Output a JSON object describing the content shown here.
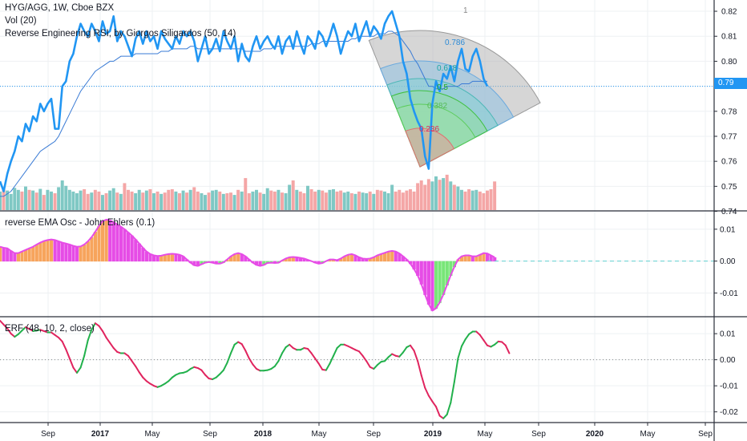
{
  "legend": {
    "main_title": "HYG/AGG, 1W, Cboe BZX",
    "vol": "Vol (20)",
    "rsi": "Reverse Engineering RSI, by Giorgos Siligardos (50, 14)",
    "osc": "reverse EMA Osc - John Ehlers (0.1)",
    "erf": "ERF (48, 10, 2, close)"
  },
  "price_tag": "0.79",
  "price_axis": [
    "0.82",
    "0.81",
    "0.80",
    "0.79",
    "0.78",
    "0.77",
    "0.76",
    "0.75",
    "0.74"
  ],
  "osc_axis": [
    "0.01",
    "0.00",
    "-0.01"
  ],
  "erf_axis": [
    "0.01",
    "0.00",
    "-0.01",
    "-0.02"
  ],
  "time_axis": [
    "Sep",
    "2017",
    "May",
    "Sep",
    "2018",
    "May",
    "Sep",
    "2019",
    "May",
    "Sep",
    "2020",
    "May",
    "Sep"
  ],
  "fib_labels": [
    "1",
    "0.786",
    "0.618",
    "0.5",
    "0.382",
    "0.236"
  ],
  "colors": {
    "price_line": "#2196f3",
    "ma_line": "#3a7bd5",
    "vol_up": "#7fc8c4",
    "vol_down": "#f4a6a6",
    "osc_orange": "#f7a45c",
    "osc_magenta": "#e64ce6",
    "osc_green": "#78e678",
    "erf_green": "#22b14c",
    "erf_red": "#e0245e",
    "zero_dashed": "#62d2d2"
  },
  "chart_data": [
    {
      "type": "line",
      "title": "HYG/AGG, 1W, Cboe BZX",
      "x_range": [
        "2016-06",
        "2020-10"
      ],
      "ylim": [
        0.74,
        0.825
      ],
      "series": [
        {
          "values": [
            0.752,
            0.748,
            0.755,
            0.76,
            0.764,
            0.77,
            0.768,
            0.775,
            0.772,
            0.778,
            0.776,
            0.783,
            0.78,
            0.783,
            0.785,
            0.773,
            0.773,
            0.79,
            0.792,
            0.8,
            0.803,
            0.81,
            0.815,
            0.812,
            0.81,
            0.815,
            0.812,
            0.808,
            0.816,
            0.811,
            0.812,
            0.818,
            0.808,
            0.812,
            0.81,
            0.806,
            0.802,
            0.809,
            0.812,
            0.807,
            0.812,
            0.808,
            0.81,
            0.805,
            0.812,
            0.809,
            0.807,
            0.805,
            0.81,
            0.807,
            0.812,
            0.81,
            0.812,
            0.808,
            0.8,
            0.805,
            0.81,
            0.803,
            0.805,
            0.809,
            0.804,
            0.812,
            0.808,
            0.805,
            0.81,
            0.8,
            0.807,
            0.802,
            0.8,
            0.806,
            0.81,
            0.805,
            0.808,
            0.81,
            0.807,
            0.805,
            0.81,
            0.803,
            0.808,
            0.81,
            0.805,
            0.812,
            0.807,
            0.803,
            0.81,
            0.808,
            0.805,
            0.812,
            0.81,
            0.806,
            0.81,
            0.815,
            0.81,
            0.803,
            0.808,
            0.812,
            0.81,
            0.815,
            0.808,
            0.812,
            0.816,
            0.81,
            0.814,
            0.812,
            0.809,
            0.815,
            0.818,
            0.82,
            0.815,
            0.81,
            0.8,
            0.795,
            0.785,
            0.78,
            0.776,
            0.773,
            0.762,
            0.757,
            0.783,
            0.792,
            0.788,
            0.795,
            0.793,
            0.798,
            0.792,
            0.8,
            0.805,
            0.797,
            0.796,
            0.802,
            0.805,
            0.8,
            0.793,
            0.79
          ]
        },
        {
          "values": [
            0.746,
            0.746,
            0.747,
            0.748,
            0.75,
            0.752,
            0.754,
            0.756,
            0.758,
            0.76,
            0.762,
            0.764,
            0.765,
            0.766,
            0.767,
            0.768,
            0.77,
            0.773,
            0.776,
            0.779,
            0.782,
            0.785,
            0.788,
            0.79,
            0.792,
            0.794,
            0.796,
            0.797,
            0.798,
            0.799,
            0.8,
            0.8,
            0.801,
            0.802,
            0.802,
            0.802,
            0.802,
            0.803,
            0.803,
            0.803,
            0.803,
            0.803,
            0.803,
            0.803,
            0.804,
            0.804,
            0.804,
            0.805,
            0.805,
            0.805,
            0.805,
            0.805,
            0.806,
            0.806,
            0.805,
            0.805,
            0.805,
            0.805,
            0.805,
            0.805,
            0.805,
            0.805,
            0.805,
            0.805,
            0.805,
            0.805,
            0.805,
            0.804,
            0.804,
            0.804,
            0.804,
            0.804,
            0.805,
            0.805,
            0.805,
            0.806,
            0.806,
            0.806,
            0.806,
            0.806,
            0.806,
            0.806,
            0.806,
            0.806,
            0.806,
            0.807,
            0.807,
            0.807,
            0.808,
            0.808,
            0.808,
            0.808,
            0.808,
            0.808,
            0.808,
            0.808,
            0.809,
            0.809,
            0.81,
            0.81,
            0.81,
            0.81,
            0.81,
            0.811,
            0.811,
            0.811,
            0.812,
            0.812,
            0.811,
            0.81,
            0.808,
            0.806,
            0.804,
            0.801,
            0.799,
            0.796,
            0.793,
            0.79,
            0.79,
            0.789,
            0.789,
            0.789,
            0.79,
            0.79,
            0.79,
            0.79,
            0.791,
            0.791,
            0.791,
            0.792,
            0.792,
            0.792,
            0.792,
            0.792
          ]
        }
      ]
    },
    {
      "type": "bar",
      "title": "Vol (20)",
      "values": [
        0.55,
        0.62,
        0.58,
        0.48,
        0.66,
        0.6,
        0.55,
        0.7,
        0.6,
        0.58,
        0.52,
        0.63,
        0.45,
        0.6,
        0.55,
        0.5,
        0.68,
        0.88,
        0.72,
        0.6,
        0.55,
        0.5,
        0.58,
        0.62,
        0.48,
        0.52,
        0.6,
        0.55,
        0.45,
        0.5,
        0.58,
        0.65,
        0.52,
        0.48,
        0.8,
        0.6,
        0.55,
        0.5,
        0.6,
        0.52,
        0.58,
        0.62,
        0.5,
        0.55,
        0.48,
        0.52,
        0.6,
        0.62,
        0.55,
        0.5,
        0.58,
        0.52,
        0.6,
        0.68,
        0.55,
        0.5,
        0.45,
        0.52,
        0.58,
        0.6,
        0.55,
        0.48,
        0.5,
        0.52,
        0.45,
        0.6,
        0.55,
        0.95,
        0.5,
        0.55,
        0.6,
        0.52,
        0.48,
        0.65,
        0.58,
        0.55,
        0.6,
        0.52,
        0.5,
        0.75,
        0.88,
        0.6,
        0.55,
        0.5,
        0.72,
        0.62,
        0.55,
        0.6,
        0.58,
        0.52,
        0.6,
        0.62,
        0.55,
        0.58,
        0.52,
        0.55,
        0.5,
        0.48,
        0.55,
        0.52,
        0.5,
        0.55,
        0.48,
        0.6,
        0.58,
        0.55,
        0.5,
        0.75,
        0.55,
        0.6,
        0.52,
        0.58,
        0.62,
        0.55,
        0.8,
        0.88,
        0.75,
        0.92,
        0.85,
        1.0,
        0.9,
        0.95,
        1.05,
        0.85,
        0.75,
        0.7,
        0.6,
        0.55,
        0.62,
        0.58,
        0.6,
        0.55,
        0.5,
        0.58,
        0.62,
        0.85
      ]
    },
    {
      "type": "area",
      "title": "reverse EMA Osc - John Ehlers (0.1)",
      "ylim": [
        -0.017,
        0.016
      ],
      "values": [
        0.0045,
        0.0042,
        0.004,
        0.0032,
        0.0025,
        0.0025,
        0.003,
        0.0035,
        0.004,
        0.0045,
        0.0052,
        0.0058,
        0.0063,
        0.0066,
        0.0068,
        0.0066,
        0.0062,
        0.0058,
        0.0055,
        0.0052,
        0.0048,
        0.0045,
        0.0046,
        0.0052,
        0.0062,
        0.0075,
        0.0092,
        0.011,
        0.0125,
        0.013,
        0.0128,
        0.0122,
        0.0115,
        0.0108,
        0.01,
        0.009,
        0.008,
        0.0068,
        0.0055,
        0.0042,
        0.003,
        0.0022,
        0.0018,
        0.0016,
        0.0017,
        0.002,
        0.0022,
        0.0023,
        0.0022,
        0.002,
        0.0015,
        0.0005,
        -0.0005,
        -0.0013,
        -0.0015,
        -0.001,
        -0.0005,
        -0.0003,
        -0.0005,
        -0.0008,
        -0.0008,
        -0.0004,
        0.0005,
        0.0015,
        0.0022,
        0.0025,
        0.0022,
        0.0015,
        0.0005,
        -0.0005,
        -0.0012,
        -0.0015,
        -0.0012,
        -0.0006,
        -0.0005,
        -0.0006,
        -0.0005,
        0.0002,
        0.0008,
        0.0012,
        0.0013,
        0.0012,
        0.001,
        0.0008,
        0.0004,
        0.0,
        -0.0005,
        -0.0008,
        -0.0006,
        0.0,
        0.0005,
        0.0005,
        0.0003,
        0.0008,
        0.0015,
        0.002,
        0.0022,
        0.0018,
        0.0012,
        0.0008,
        0.0007,
        0.0008,
        0.0012,
        0.0018,
        0.0022,
        0.0026,
        0.003,
        0.0032,
        0.003,
        0.0024,
        0.0015,
        0.0005,
        -0.0008,
        -0.0025,
        -0.0045,
        -0.0072,
        -0.0105,
        -0.0135,
        -0.0155,
        -0.0148,
        -0.013,
        -0.0105,
        -0.0075,
        -0.0045,
        -0.0018,
        0.0005,
        0.0015,
        0.0018,
        0.0018,
        0.0015,
        0.0015,
        0.002,
        0.0025,
        0.0024,
        0.0018,
        0.0012
      ]
    },
    {
      "type": "line",
      "title": "ERF (48, 10, 2, close)",
      "ylim": [
        -0.023,
        0.016
      ],
      "values": [
        0.015,
        0.0135,
        0.012,
        0.01,
        0.0088,
        0.0098,
        0.0112,
        0.0125,
        0.0118,
        0.011,
        0.0112,
        0.0115,
        0.011,
        0.0105,
        0.0105,
        0.0095,
        0.0085,
        0.007,
        0.004,
        0.0005,
        -0.003,
        -0.005,
        -0.003,
        0.0015,
        0.0075,
        0.0115,
        0.014,
        0.013,
        0.011,
        0.0085,
        0.0065,
        0.0045,
        0.003,
        0.0025,
        0.0025,
        0.0015,
        -0.0005,
        -0.0025,
        -0.0048,
        -0.0068,
        -0.0082,
        -0.0092,
        -0.01,
        -0.0105,
        -0.01,
        -0.0092,
        -0.0082,
        -0.0068,
        -0.0058,
        -0.0052,
        -0.005,
        -0.0045,
        -0.0035,
        -0.0028,
        -0.0032,
        -0.004,
        -0.0058,
        -0.0072,
        -0.0075,
        -0.0068,
        -0.0055,
        -0.004,
        -0.0012,
        0.0025,
        0.0058,
        0.0068,
        0.006,
        0.0035,
        0.0005,
        -0.0018,
        -0.0035,
        -0.0042,
        -0.0042,
        -0.004,
        -0.0035,
        -0.0025,
        -0.0005,
        0.0025,
        0.0048,
        0.0058,
        0.0045,
        0.0038,
        0.0038,
        0.0045,
        0.0042,
        0.0025,
        0.0005,
        -0.0015,
        -0.0038,
        -0.004,
        -0.0015,
        0.0015,
        0.0045,
        0.0058,
        0.0058,
        0.0052,
        0.0045,
        0.0038,
        0.0032,
        0.0015,
        -0.0005,
        -0.0028,
        -0.0035,
        -0.002,
        -0.0008,
        -0.0005,
        0.001,
        0.0022,
        0.0015,
        0.0012,
        0.0028,
        0.0048,
        0.0055,
        0.0035,
        -0.0005,
        -0.006,
        -0.0108,
        -0.0138,
        -0.016,
        -0.018,
        -0.0215,
        -0.0225,
        -0.021,
        -0.0165,
        -0.0085,
        0.0005,
        0.0052,
        0.0078,
        0.0098,
        0.0108,
        0.0108,
        0.0095,
        0.0075,
        0.0055,
        0.005,
        0.0058,
        0.007,
        0.0068,
        0.0055,
        0.0025
      ]
    }
  ]
}
